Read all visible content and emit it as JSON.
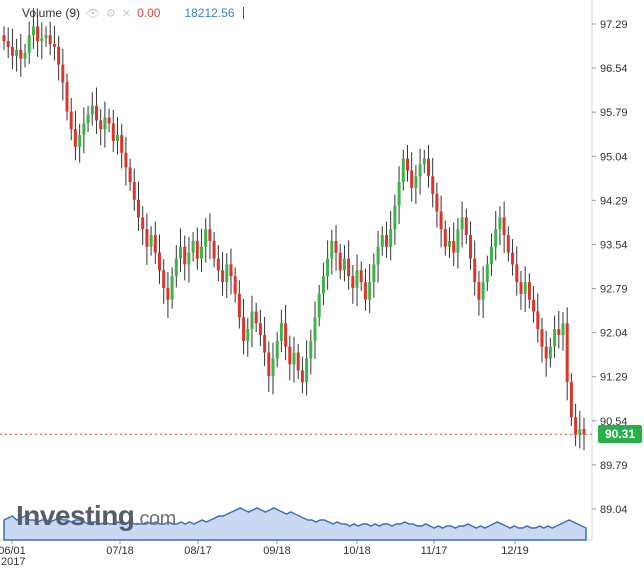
{
  "indicator": {
    "name": "Volume (9)",
    "value": "0.00",
    "volume": "18212.56"
  },
  "price_tag": "90.31",
  "logo": {
    "main": "Investing",
    "suffix": ".com"
  },
  "year_label": "2017",
  "colors": {
    "up": "#3cb44a",
    "down": "#e0332c",
    "neutral": "#333333",
    "volume_area": "#3a6fc0",
    "price_line": "#e8553c",
    "tag": "#27b04a"
  },
  "chart_data": {
    "type": "candlestick",
    "y_ticks": [
      "97.29",
      "96.54",
      "95.79",
      "95.04",
      "94.29",
      "93.54",
      "92.79",
      "92.04",
      "91.29",
      "90.54",
      "89.79",
      "89.04"
    ],
    "x_ticks": [
      "06/01",
      "07/18",
      "08/17",
      "09/18",
      "10/18",
      "11/17",
      "12/19"
    ],
    "ylim": [
      89.04,
      97.29
    ],
    "current_price": 90.31,
    "closes": [
      97.0,
      96.9,
      96.75,
      96.85,
      96.7,
      96.8,
      97.1,
      97.25,
      97.0,
      97.05,
      97.1,
      96.95,
      96.9,
      96.6,
      96.3,
      95.8,
      95.5,
      95.2,
      95.4,
      95.6,
      95.75,
      95.9,
      95.65,
      95.5,
      95.7,
      95.6,
      95.3,
      95.4,
      95.1,
      94.85,
      94.6,
      94.3,
      94.0,
      93.8,
      93.5,
      93.7,
      93.4,
      93.1,
      92.8,
      92.6,
      93.0,
      93.3,
      93.5,
      93.2,
      93.4,
      93.6,
      93.3,
      93.5,
      93.8,
      93.6,
      93.3,
      93.1,
      92.9,
      93.2,
      93.0,
      92.7,
      92.3,
      91.9,
      92.1,
      92.4,
      92.2,
      92.0,
      91.7,
      91.3,
      91.6,
      91.9,
      92.2,
      91.8,
      91.5,
      91.7,
      91.4,
      91.2,
      91.6,
      91.9,
      92.3,
      92.7,
      93.0,
      93.3,
      93.6,
      93.4,
      93.1,
      93.3,
      93.0,
      92.8,
      93.1,
      92.9,
      92.6,
      92.9,
      93.2,
      93.5,
      93.7,
      93.5,
      93.8,
      94.2,
      94.6,
      95.0,
      94.8,
      94.5,
      94.7,
      94.9,
      95.0,
      94.7,
      94.4,
      94.1,
      93.8,
      93.5,
      93.6,
      93.4,
      93.8,
      94.0,
      93.7,
      93.3,
      92.9,
      92.6,
      92.9,
      93.2,
      93.5,
      93.8,
      94.0,
      93.7,
      93.4,
      93.2,
      92.9,
      92.7,
      92.9,
      92.6,
      92.4,
      92.1,
      91.8,
      91.6,
      91.8,
      92.1,
      92.0,
      92.2,
      91.2,
      90.6,
      90.3,
      90.4,
      90.31
    ],
    "volumes": [
      0.5,
      0.55,
      0.6,
      0.5,
      0.55,
      0.6,
      0.5,
      0.5,
      0.45,
      0.5,
      0.5,
      0.45,
      0.5,
      0.55,
      0.5,
      0.5,
      0.45,
      0.5,
      0.5,
      0.45,
      0.4,
      0.45,
      0.45,
      0.4,
      0.45,
      0.4,
      0.4,
      0.45,
      0.4,
      0.4,
      0.45,
      0.4,
      0.4,
      0.4,
      0.45,
      0.4,
      0.45,
      0.4,
      0.4,
      0.45,
      0.4,
      0.4,
      0.45,
      0.4,
      0.45,
      0.4,
      0.45,
      0.5,
      0.45,
      0.5,
      0.55,
      0.6,
      0.6,
      0.65,
      0.7,
      0.75,
      0.8,
      0.75,
      0.7,
      0.75,
      0.8,
      0.75,
      0.7,
      0.75,
      0.8,
      0.75,
      0.7,
      0.65,
      0.7,
      0.65,
      0.6,
      0.55,
      0.5,
      0.5,
      0.45,
      0.5,
      0.5,
      0.45,
      0.4,
      0.45,
      0.4,
      0.4,
      0.35,
      0.4,
      0.35,
      0.4,
      0.4,
      0.35,
      0.4,
      0.35,
      0.4,
      0.4,
      0.35,
      0.4,
      0.4,
      0.45,
      0.4,
      0.4,
      0.35,
      0.35,
      0.4,
      0.35,
      0.3,
      0.35,
      0.3,
      0.35,
      0.35,
      0.3,
      0.35,
      0.35,
      0.4,
      0.35,
      0.3,
      0.35,
      0.3,
      0.35,
      0.4,
      0.45,
      0.4,
      0.35,
      0.3,
      0.35,
      0.3,
      0.3,
      0.35,
      0.3,
      0.3,
      0.35,
      0.3,
      0.35,
      0.3,
      0.35,
      0.4,
      0.45,
      0.5,
      0.45,
      0.4,
      0.35,
      0.3
    ]
  }
}
